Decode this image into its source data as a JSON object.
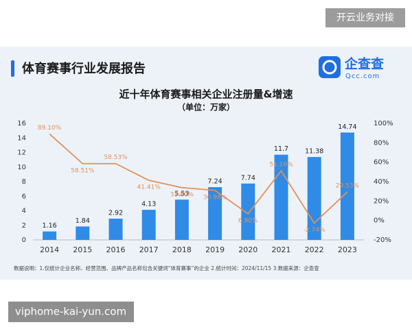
{
  "watermark_top": "开云业务对接",
  "watermark_bottom": "viphome-kai-yun.com",
  "header": {
    "title": "体育赛事行业发展报告",
    "logo": "企查查",
    "logo_sub": "Qcc.com"
  },
  "footnote": "数据说明：1.仅统计企业名称、经营范围、品牌产品名称包含关键词“体育赛事”的企业  2.统计时间：2024/11/15  3.数据来源：企查查",
  "chart_data": {
    "type": "combo",
    "title": "近十年体育赛事相关企业注册量&增速",
    "subtitle": "（单位：万家）",
    "categories": [
      "2014",
      "2015",
      "2016",
      "2017",
      "2018",
      "2019",
      "2020",
      "2021",
      "2022",
      "2023"
    ],
    "series": [
      {
        "type": "bar",
        "color": "#2f8be6",
        "values": [
          1.16,
          1.84,
          2.92,
          4.13,
          5.53,
          7.24,
          7.74,
          11.7,
          11.38,
          14.74
        ]
      },
      {
        "type": "line",
        "axis": "y2",
        "color": "#e0915a",
        "values": [
          89.1,
          58.51,
          58.53,
          41.41,
          33.8,
          30.98,
          6.9,
          51.16,
          -2.74,
          29.53
        ],
        "value_labels": [
          "89.10%",
          "58.51%",
          "58.53%",
          "41.41%",
          "33.80%",
          "30.98%",
          "6.90%",
          "51.16%",
          "-2.74%",
          "29.53%"
        ]
      }
    ],
    "ylim": [
      0,
      16
    ],
    "yticks": [
      0,
      2,
      4,
      6,
      8,
      10,
      12,
      14,
      16
    ],
    "y2lim": [
      -20,
      100
    ],
    "y2ticks": [
      {
        "value": -20,
        "label": "-20%"
      },
      {
        "value": 0,
        "label": "0%"
      },
      {
        "value": 20,
        "label": "20%"
      },
      {
        "value": 40,
        "label": "40%"
      },
      {
        "value": 60,
        "label": "60%"
      },
      {
        "value": 80,
        "label": "80%"
      },
      {
        "value": 100,
        "label": "100%"
      }
    ]
  }
}
